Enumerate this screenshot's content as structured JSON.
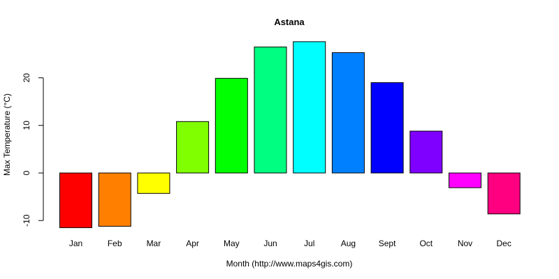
{
  "chart_data": {
    "type": "bar",
    "title": "Astana",
    "xlabel": "Month (http://www.maps4gis.com)",
    "ylabel": "Max Temperature (°C)",
    "categories": [
      "Jan",
      "Feb",
      "Mar",
      "Apr",
      "May",
      "Jun",
      "Jul",
      "Aug",
      "Sept",
      "Oct",
      "Nov",
      "Dec"
    ],
    "values": [
      -11.5,
      -11.2,
      -4.3,
      10.8,
      19.9,
      26.5,
      27.6,
      25.3,
      19.0,
      8.8,
      -3.1,
      -8.6
    ],
    "colors": [
      "#FF0000",
      "#FF8000",
      "#FFFF00",
      "#80FF00",
      "#00FF00",
      "#00FF80",
      "#00FFFF",
      "#0080FF",
      "#0000FF",
      "#8000FF",
      "#FF00FF",
      "#FF0080"
    ],
    "yticks": [
      -10,
      0,
      10,
      20
    ],
    "ylim": [
      -12.5,
      30
    ],
    "grid": false,
    "legend": "none"
  }
}
